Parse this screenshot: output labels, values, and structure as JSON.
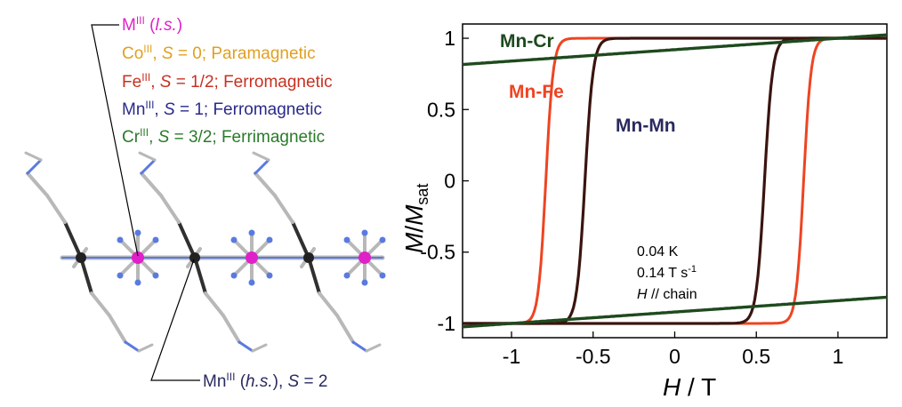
{
  "labels": {
    "metal": {
      "sym": "M",
      "sup": "III",
      "open": " (",
      "spin_state": "l.s.",
      "close": ")"
    },
    "co": {
      "sym": "Co",
      "sup": "III",
      "sep": ", ",
      "S": "S",
      "eq": " = 0; Paramagnetic"
    },
    "fe": {
      "sym": "Fe",
      "sup": "III",
      "sep": ", ",
      "S": "S",
      "eq": " = 1/2; Ferromagnetic"
    },
    "mn": {
      "sym": "Mn",
      "sup": "III",
      "sep": ", ",
      "S": "S",
      "eq": " = 1; Ferromagnetic"
    },
    "cr": {
      "sym": "Cr",
      "sup": "III",
      "sep": ", ",
      "S": "S",
      "eq": " = 3/2; Ferrimagnetic"
    },
    "mn_hs": {
      "sym": "Mn",
      "sup": "III",
      "open": " (",
      "spin_state": "h.s.",
      "close": "), ",
      "S": "S",
      "eq": " = 2"
    }
  },
  "colors": {
    "metal": "#e020c8",
    "co": "#e0a020",
    "fe": "#c83020",
    "mn": "#2a2a8a",
    "cr": "#2a7a2a",
    "mn_hs": "#2a2a60",
    "mnfe": "#ee4422",
    "mnmn": "#3a1410",
    "mncr": "#1e4a1e",
    "stick_gray": "#b8b8b8",
    "stick_dark": "#303030",
    "stick_blue": "#5a7ae0"
  },
  "annotation": {
    "temperature": "0.04 K",
    "sweep_rate": "0.14 T s",
    "sweep_sup": "-1",
    "orientation_H": "H",
    "orientation": " // chain"
  },
  "chart_data": {
    "type": "line",
    "xlabel_H": "H",
    "xlabel_unit": " / T",
    "ylabel_M": "M",
    "ylabel_sep": "/",
    "ylabel_Msat": "M",
    "ylabel_sub": "sat",
    "xlim": [
      -1.3,
      1.3
    ],
    "ylim": [
      -1.1,
      1.1
    ],
    "xticks": [
      -1,
      -0.5,
      0,
      0.5,
      1
    ],
    "xtick_labels": [
      "-1",
      "-0.5",
      "0",
      "0.5",
      "1"
    ],
    "yticks": [
      -1,
      -0.5,
      0,
      0.5,
      1
    ],
    "ytick_labels": [
      "-1",
      "-0.5",
      "0",
      "0.5",
      "1"
    ],
    "series": [
      {
        "name": "Mn-Fe",
        "coercive_field": 0.79,
        "saturation_slope": 0.0
      },
      {
        "name": "Mn-Mn",
        "coercive_field": 0.55,
        "saturation_slope": 0.0
      },
      {
        "name": "Mn-Cr",
        "coercive_field": 0.0,
        "saturation_slope": 0.08
      }
    ]
  }
}
